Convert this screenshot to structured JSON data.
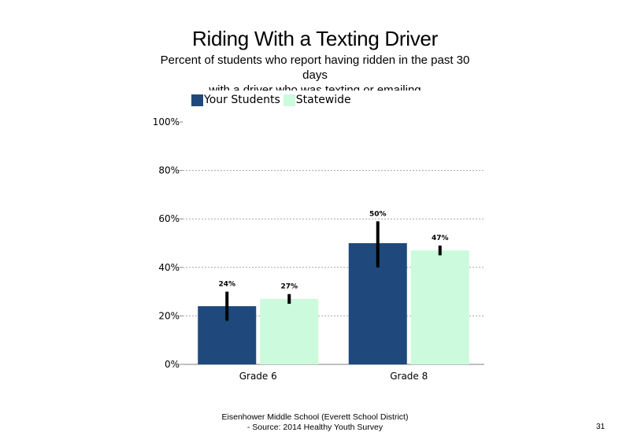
{
  "slide": {
    "title": "Riding With a Texting Driver",
    "subtitle_lines": [
      "Percent of students who report having ridden in the past 30",
      "days",
      "with a driver who was texting or emailing"
    ],
    "footer_lines": [
      "Eisenhower Middle School (Everett School District)",
      "- Source: 2014 Healthy Youth Survey"
    ],
    "page_number": "31"
  },
  "legend": {
    "placement": "top-left",
    "items": [
      {
        "label": "Your Students",
        "color": "#1f497d"
      },
      {
        "label": "Statewide",
        "color": "#ccfadc"
      }
    ]
  },
  "chart_data": {
    "type": "bar",
    "title": "Riding With a Texting Driver",
    "xlabel": "",
    "ylabel": "",
    "categories": [
      "Grade 6",
      "Grade 8"
    ],
    "ylim": [
      0,
      100
    ],
    "yticks": [
      "0%",
      "20%",
      "40%",
      "60%",
      "80%",
      "100%"
    ],
    "ytick_values": [
      0,
      20,
      40,
      60,
      80,
      100
    ],
    "grid": true,
    "series": [
      {
        "name": "Your Students",
        "color": "#1f497d",
        "values": [
          24,
          50
        ],
        "labels": [
          "24%",
          "50%"
        ],
        "error_low": [
          18,
          40
        ],
        "error_high": [
          30,
          59
        ]
      },
      {
        "name": "Statewide",
        "color": "#ccfadc",
        "values": [
          27,
          47
        ],
        "labels": [
          "27%",
          "47%"
        ],
        "error_low": [
          25,
          45
        ],
        "error_high": [
          29,
          49
        ]
      }
    ]
  }
}
